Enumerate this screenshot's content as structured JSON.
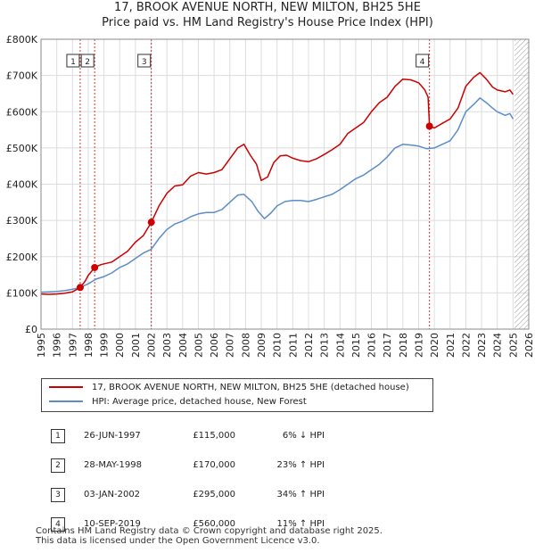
{
  "title_line1": "17, BROOK AVENUE NORTH, NEW MILTON, BH25 5HE",
  "title_line2": "Price paid vs. HM Land Registry's House Price Index (HPI)",
  "colors": {
    "property": "#cc0000",
    "hpi": "#5b8dc8",
    "grid": "#dddddd",
    "hatch": "#999999"
  },
  "chart_data": {
    "type": "line",
    "title": "Price paid vs. HM Land Registry's House Price Index (HPI)",
    "xlim": [
      1995,
      2026
    ],
    "ylim": [
      0,
      800000
    ],
    "x_ticks": [
      1995,
      1996,
      1997,
      1998,
      1999,
      2000,
      2001,
      2002,
      2003,
      2004,
      2005,
      2006,
      2007,
      2008,
      2009,
      2010,
      2011,
      2012,
      2013,
      2014,
      2015,
      2016,
      2017,
      2018,
      2019,
      2020,
      2021,
      2022,
      2023,
      2024,
      2025,
      2026
    ],
    "y_ticks": [
      0,
      100000,
      200000,
      300000,
      400000,
      500000,
      600000,
      700000,
      800000
    ],
    "y_tick_labels": [
      "£0",
      "£100K",
      "£200K",
      "£300K",
      "£400K",
      "£500K",
      "£600K",
      "£700K",
      "£800K"
    ],
    "future_hatch_from": 2025.1,
    "series": [
      {
        "name": "17, BROOK AVENUE NORTH, NEW MILTON, BH25 5HE (detached house)",
        "color": "#cc0000",
        "points": [
          [
            1995.0,
            97000
          ],
          [
            1995.5,
            96000
          ],
          [
            1996.0,
            97000
          ],
          [
            1996.5,
            99000
          ],
          [
            1997.0,
            103000
          ],
          [
            1997.49,
            115000
          ],
          [
            1997.8,
            132000
          ],
          [
            1998.0,
            148000
          ],
          [
            1998.41,
            170000
          ],
          [
            1998.8,
            178000
          ],
          [
            1999.5,
            185000
          ],
          [
            2000.0,
            200000
          ],
          [
            2000.5,
            215000
          ],
          [
            2001.0,
            240000
          ],
          [
            2001.5,
            258000
          ],
          [
            2002.01,
            295000
          ],
          [
            2002.5,
            340000
          ],
          [
            2003.0,
            375000
          ],
          [
            2003.5,
            395000
          ],
          [
            2004.0,
            398000
          ],
          [
            2004.5,
            422000
          ],
          [
            2005.0,
            432000
          ],
          [
            2005.5,
            428000
          ],
          [
            2006.0,
            432000
          ],
          [
            2006.5,
            440000
          ],
          [
            2007.0,
            470000
          ],
          [
            2007.5,
            500000
          ],
          [
            2007.9,
            510000
          ],
          [
            2008.3,
            480000
          ],
          [
            2008.7,
            455000
          ],
          [
            2009.0,
            410000
          ],
          [
            2009.4,
            420000
          ],
          [
            2009.8,
            460000
          ],
          [
            2010.2,
            478000
          ],
          [
            2010.6,
            480000
          ],
          [
            2011.0,
            472000
          ],
          [
            2011.5,
            465000
          ],
          [
            2012.0,
            462000
          ],
          [
            2012.5,
            470000
          ],
          [
            2013.0,
            482000
          ],
          [
            2013.5,
            495000
          ],
          [
            2014.0,
            510000
          ],
          [
            2014.5,
            540000
          ],
          [
            2015.0,
            555000
          ],
          [
            2015.5,
            570000
          ],
          [
            2016.0,
            600000
          ],
          [
            2016.5,
            625000
          ],
          [
            2017.0,
            640000
          ],
          [
            2017.5,
            670000
          ],
          [
            2018.0,
            690000
          ],
          [
            2018.5,
            688000
          ],
          [
            2019.0,
            680000
          ],
          [
            2019.4,
            660000
          ],
          [
            2019.6,
            640000
          ],
          [
            2019.69,
            560000
          ],
          [
            2020.0,
            555000
          ],
          [
            2020.5,
            568000
          ],
          [
            2021.0,
            580000
          ],
          [
            2021.5,
            610000
          ],
          [
            2022.0,
            670000
          ],
          [
            2022.5,
            695000
          ],
          [
            2022.9,
            708000
          ],
          [
            2023.3,
            690000
          ],
          [
            2023.7,
            668000
          ],
          [
            2024.0,
            660000
          ],
          [
            2024.5,
            655000
          ],
          [
            2024.8,
            660000
          ],
          [
            2025.0,
            648000
          ]
        ]
      },
      {
        "name": "HPI: Average price, detached house, New Forest",
        "color": "#5b8dc8",
        "points": [
          [
            1995.0,
            102000
          ],
          [
            1995.5,
            103000
          ],
          [
            1996.0,
            104000
          ],
          [
            1996.5,
            106000
          ],
          [
            1997.0,
            110000
          ],
          [
            1997.5,
            115000
          ],
          [
            1998.0,
            125000
          ],
          [
            1998.5,
            138000
          ],
          [
            1999.0,
            145000
          ],
          [
            1999.5,
            155000
          ],
          [
            2000.0,
            170000
          ],
          [
            2000.5,
            180000
          ],
          [
            2001.0,
            195000
          ],
          [
            2001.5,
            210000
          ],
          [
            2002.0,
            220000
          ],
          [
            2002.5,
            250000
          ],
          [
            2003.0,
            275000
          ],
          [
            2003.5,
            290000
          ],
          [
            2004.0,
            298000
          ],
          [
            2004.5,
            310000
          ],
          [
            2005.0,
            318000
          ],
          [
            2005.5,
            322000
          ],
          [
            2006.0,
            322000
          ],
          [
            2006.5,
            330000
          ],
          [
            2007.0,
            350000
          ],
          [
            2007.5,
            370000
          ],
          [
            2007.9,
            372000
          ],
          [
            2008.4,
            352000
          ],
          [
            2008.8,
            325000
          ],
          [
            2009.2,
            305000
          ],
          [
            2009.6,
            320000
          ],
          [
            2010.0,
            340000
          ],
          [
            2010.5,
            352000
          ],
          [
            2011.0,
            355000
          ],
          [
            2011.5,
            355000
          ],
          [
            2012.0,
            352000
          ],
          [
            2012.5,
            358000
          ],
          [
            2013.0,
            365000
          ],
          [
            2013.5,
            372000
          ],
          [
            2014.0,
            385000
          ],
          [
            2014.5,
            400000
          ],
          [
            2015.0,
            415000
          ],
          [
            2015.5,
            425000
          ],
          [
            2016.0,
            440000
          ],
          [
            2016.5,
            455000
          ],
          [
            2017.0,
            475000
          ],
          [
            2017.5,
            500000
          ],
          [
            2018.0,
            510000
          ],
          [
            2018.5,
            508000
          ],
          [
            2019.0,
            505000
          ],
          [
            2019.5,
            498000
          ],
          [
            2020.0,
            500000
          ],
          [
            2020.5,
            510000
          ],
          [
            2021.0,
            520000
          ],
          [
            2021.5,
            550000
          ],
          [
            2022.0,
            600000
          ],
          [
            2022.5,
            620000
          ],
          [
            2022.9,
            638000
          ],
          [
            2023.3,
            625000
          ],
          [
            2023.7,
            610000
          ],
          [
            2024.0,
            600000
          ],
          [
            2024.5,
            590000
          ],
          [
            2024.8,
            595000
          ],
          [
            2025.0,
            580000
          ]
        ]
      }
    ],
    "sales": [
      {
        "label": "1",
        "x": 1997.49,
        "price": 115000
      },
      {
        "label": "2",
        "x": 1998.41,
        "price": 170000
      },
      {
        "label": "3",
        "x": 2002.01,
        "price": 295000
      },
      {
        "label": "4",
        "x": 2019.69,
        "price": 560000
      }
    ]
  },
  "legend": {
    "property_label": "17, BROOK AVENUE NORTH, NEW MILTON, BH25 5HE (detached house)",
    "hpi_label": "HPI: Average price, detached house, New Forest"
  },
  "sales_table": [
    {
      "num": "1",
      "date": "26-JUN-1997",
      "price": "£115,000",
      "hpi": "6% ↓ HPI"
    },
    {
      "num": "2",
      "date": "28-MAY-1998",
      "price": "£170,000",
      "hpi": "23% ↑ HPI"
    },
    {
      "num": "3",
      "date": "03-JAN-2002",
      "price": "£295,000",
      "hpi": "34% ↑ HPI"
    },
    {
      "num": "4",
      "date": "10-SEP-2019",
      "price": "£560,000",
      "hpi": "11% ↑ HPI"
    }
  ],
  "footer": {
    "line1": "Contains HM Land Registry data © Crown copyright and database right 2025.",
    "line2": "This data is licensed under the Open Government Licence v3.0."
  }
}
